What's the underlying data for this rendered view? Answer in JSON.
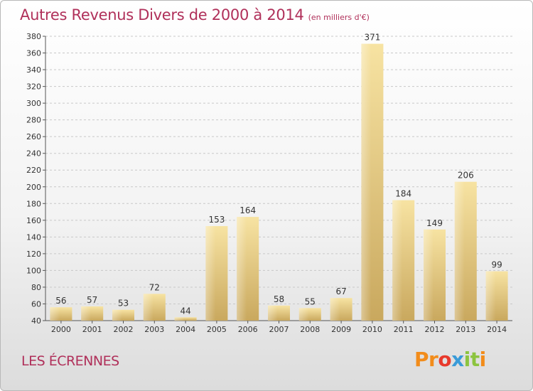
{
  "header": {
    "title": "Autres Revenus Divers de 2000 à 2014",
    "subtitle": "(en milliers d'€)"
  },
  "footer": {
    "commune": "LES ÉCRENNES",
    "logo_letters": [
      "P",
      "r",
      "o",
      "x",
      "i",
      "t",
      "i"
    ],
    "logo_colors": [
      "#f28c1b",
      "#f28c1b",
      "#e8392c",
      "#3a9bd8",
      "#8cc43f",
      "#8cc43f",
      "#f28c1b"
    ]
  },
  "colors": {
    "bar_light": "#f7e3a2",
    "bar_dark": "#c9a85e",
    "grid": "#c8c8c8",
    "title": "#b0305a"
  },
  "chart_data": {
    "type": "bar",
    "title": "Autres Revenus Divers de 2000 à 2014",
    "subtitle": "(en milliers d'€)",
    "categories": [
      "2000",
      "2001",
      "2002",
      "2003",
      "2004",
      "2005",
      "2006",
      "2007",
      "2008",
      "2009",
      "2010",
      "2011",
      "2012",
      "2013",
      "2014"
    ],
    "values": [
      56,
      57,
      53,
      72,
      44,
      153,
      164,
      58,
      55,
      67,
      371,
      184,
      149,
      206,
      99
    ],
    "ylim": [
      40,
      380
    ],
    "yticks": [
      40,
      60,
      80,
      100,
      120,
      140,
      160,
      180,
      200,
      220,
      240,
      260,
      280,
      300,
      320,
      340,
      360,
      380
    ],
    "grid": true,
    "legend": "none"
  }
}
